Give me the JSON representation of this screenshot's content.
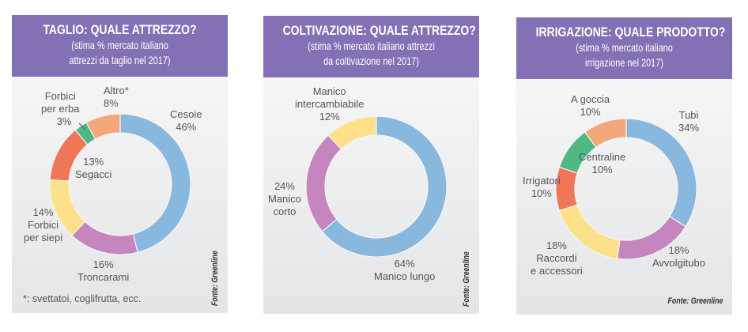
{
  "chart_data": [
    {
      "type": "pie",
      "variant": "donut",
      "title": "TAGLIO: QUALE ATTREZZO?",
      "subtitle": [
        "(stima % mercato italiano",
        "attrezzi da taglio nel 2017)"
      ],
      "slices": [
        {
          "label": [
            "Cesoie"
          ],
          "value": 46,
          "value_label": "46%",
          "color": "#89b8df"
        },
        {
          "label": [
            "Troncarami"
          ],
          "value": 16,
          "value_label": "16%",
          "color": "#c585bf"
        },
        {
          "label": [
            "Forbici",
            "per siepi"
          ],
          "value": 14,
          "value_label": "14%",
          "color": "#fde08a"
        },
        {
          "label": [
            "Segacci"
          ],
          "value": 13,
          "value_label": "13%",
          "color": "#ef7657"
        },
        {
          "label": [
            "Forbici",
            "per erba"
          ],
          "value": 3,
          "value_label": "3%",
          "color": "#4fb883"
        },
        {
          "label": [
            "Altro*"
          ],
          "value": 8,
          "value_label": "8%",
          "color": "#f2a87a"
        }
      ],
      "footnote": "*: svettatoi, coglifrutta, ecc.",
      "source": "Fonte: Greenline"
    },
    {
      "type": "pie",
      "variant": "donut",
      "title": "COLTIVAZIONE: QUALE ATTREZZO?",
      "subtitle": [
        "(stima % mercato italiano attrezzi",
        "da coltivazione nel 2017)"
      ],
      "slices": [
        {
          "label": [
            "Manico lungo"
          ],
          "value": 64,
          "value_label": "64%",
          "color": "#89b8df"
        },
        {
          "label": [
            "Manico",
            "corto"
          ],
          "value": 24,
          "value_label": "24%",
          "color": "#c585bf"
        },
        {
          "label": [
            "Manico",
            "intercambiabile"
          ],
          "value": 12,
          "value_label": "12%",
          "color": "#fde08a"
        }
      ],
      "source": "Fonte: Greenline"
    },
    {
      "type": "pie",
      "variant": "donut",
      "title": "IRRIGAZIONE: QUALE PRODOTTO?",
      "subtitle": [
        "(stima % mercato italiano",
        "irrigazione nel 2017)"
      ],
      "slices": [
        {
          "label": [
            "Tubi"
          ],
          "value": 34,
          "value_label": "34%",
          "color": "#89b8df"
        },
        {
          "label": [
            "Avvolgitubo"
          ],
          "value": 18,
          "value_label": "18%",
          "color": "#c585bf"
        },
        {
          "label": [
            "Raccordi",
            "e accessori"
          ],
          "value": 18,
          "value_label": "18%",
          "color": "#fde08a"
        },
        {
          "label": [
            "Irrigatori"
          ],
          "value": 10,
          "value_label": "10%",
          "color": "#ef7657"
        },
        {
          "label": [
            "Centraline"
          ],
          "value": 10,
          "value_label": "10%",
          "color": "#4fb883"
        },
        {
          "label": [
            "A goccia"
          ],
          "value": 10,
          "value_label": "10%",
          "color": "#f2a87a"
        }
      ],
      "source": "Fonte: Greenline"
    }
  ]
}
